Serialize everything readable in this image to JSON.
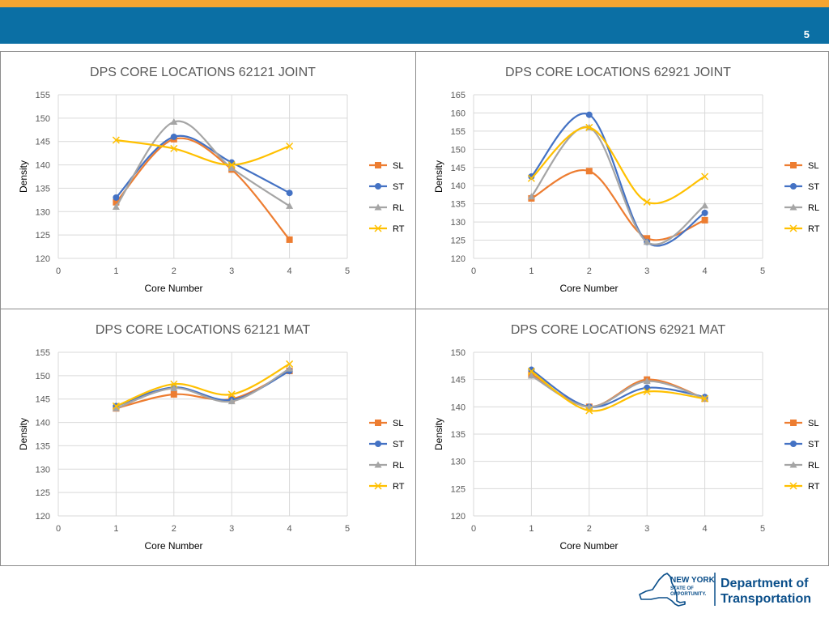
{
  "slide": {
    "page_number": "5"
  },
  "colors": {
    "SL": "#ED7D31",
    "ST": "#4472C4",
    "RL": "#A5A5A5",
    "RT": "#FFC000",
    "header": "#0B6FA4",
    "stripe": "#F5A531"
  },
  "chart_data": [
    {
      "type": "line",
      "title": "DPS CORE LOCATIONS 62121 JOINT",
      "xlabel": "Core Number",
      "ylabel": "Density",
      "xlim": [
        0,
        5
      ],
      "ylim": [
        120,
        155
      ],
      "ystep": 5,
      "x_ticks": [
        "0",
        "1",
        "2",
        "3",
        "4",
        "5"
      ],
      "y_ticks": [
        "120",
        "125",
        "130",
        "135",
        "140",
        "145",
        "150",
        "155"
      ],
      "x": [
        1,
        2,
        3,
        4
      ],
      "series": [
        {
          "name": "SL",
          "values": [
            132,
            145.5,
            139,
            124
          ]
        },
        {
          "name": "ST",
          "values": [
            133,
            146,
            140.5,
            134
          ]
        },
        {
          "name": "RL",
          "values": [
            131,
            149.2,
            139.3,
            131.2
          ]
        },
        {
          "name": "RT",
          "values": [
            145.3,
            143.5,
            140,
            144
          ]
        }
      ]
    },
    {
      "type": "line",
      "title": "DPS CORE LOCATIONS 62921 JOINT",
      "xlabel": "Core Number",
      "ylabel": "Density",
      "xlim": [
        0,
        5
      ],
      "ylim": [
        120,
        165
      ],
      "ystep": 5,
      "x_ticks": [
        "0",
        "1",
        "2",
        "3",
        "4",
        "5"
      ],
      "y_ticks": [
        "120",
        "125",
        "130",
        "135",
        "140",
        "145",
        "150",
        "155",
        "160",
        "165"
      ],
      "x": [
        1,
        2,
        3,
        4
      ],
      "series": [
        {
          "name": "SL",
          "values": [
            136.5,
            144,
            125.5,
            130.5
          ]
        },
        {
          "name": "ST",
          "values": [
            142.5,
            159.5,
            124.5,
            132.5
          ]
        },
        {
          "name": "RL",
          "values": [
            137,
            156,
            124.5,
            134.5
          ]
        },
        {
          "name": "RT",
          "values": [
            142,
            156,
            135.5,
            142.5
          ]
        }
      ]
    },
    {
      "type": "line",
      "title": "DPS CORE LOCATIONS 62121 MAT",
      "xlabel": "Core Number",
      "ylabel": "Density",
      "xlim": [
        0,
        5
      ],
      "ylim": [
        120,
        155
      ],
      "ystep": 5,
      "x_ticks": [
        "0",
        "1",
        "2",
        "3",
        "4",
        "5"
      ],
      "y_ticks": [
        "120",
        "125",
        "130",
        "135",
        "140",
        "145",
        "150",
        "155"
      ],
      "x": [
        1,
        2,
        3,
        4
      ],
      "series": [
        {
          "name": "SL",
          "values": [
            143,
            146,
            145,
            151
          ]
        },
        {
          "name": "ST",
          "values": [
            143.5,
            147.5,
            144.8,
            151
          ]
        },
        {
          "name": "RL",
          "values": [
            143,
            147.3,
            144.5,
            151.5
          ]
        },
        {
          "name": "RT",
          "values": [
            143.5,
            148.2,
            146,
            152.5
          ]
        }
      ]
    },
    {
      "type": "line",
      "title": "DPS CORE LOCATIONS 62921 MAT",
      "xlabel": "Core Number",
      "ylabel": "Density",
      "xlim": [
        0,
        5
      ],
      "ylim": [
        120,
        150
      ],
      "ystep": 5,
      "x_ticks": [
        "0",
        "1",
        "2",
        "3",
        "4",
        "5"
      ],
      "y_ticks": [
        "120",
        "125",
        "130",
        "135",
        "140",
        "145",
        "150"
      ],
      "x": [
        1,
        2,
        3,
        4
      ],
      "series": [
        {
          "name": "SL",
          "values": [
            146,
            140,
            145,
            141.5
          ]
        },
        {
          "name": "ST",
          "values": [
            146.8,
            140,
            143.5,
            141.8
          ]
        },
        {
          "name": "RL",
          "values": [
            145.7,
            140,
            144.7,
            141.5
          ]
        },
        {
          "name": "RT",
          "values": [
            146.5,
            139.3,
            142.8,
            141.5
          ]
        }
      ]
    }
  ],
  "logo": {
    "state_line1": "NEW YORK",
    "state_line2": "STATE OF",
    "state_line3": "OPPORTUNITY.",
    "dept_line1": "Department of",
    "dept_line2": "Transportation"
  }
}
